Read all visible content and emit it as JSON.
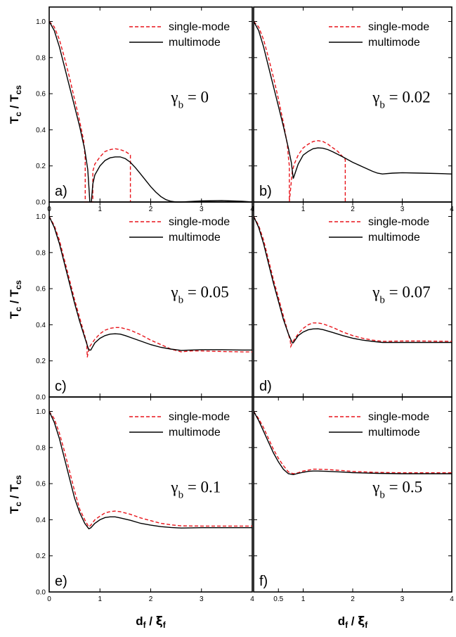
{
  "chart_data": {
    "type": "line",
    "figure_ylabel": {
      "main": "T",
      "sub": "c",
      "sep": " / T",
      "sub2": "cs"
    },
    "figure_xlabel": {
      "main": "d",
      "sub": "f",
      "sep": " / ",
      "sym": "ξ",
      "sub2": "f"
    },
    "xlim": [
      0,
      4
    ],
    "ylim": [
      0,
      1.08
    ],
    "legend": {
      "placement": "top-right",
      "entries": [
        "single-mode",
        "multimode"
      ]
    },
    "series_style": {
      "single-mode": {
        "color": "#e8141b",
        "dash": true
      },
      "multimode": {
        "color": "#000000",
        "dash": false
      }
    },
    "panels": [
      {
        "label": "a)",
        "gamma_symbol": "γ",
        "gamma_sub": "b",
        "gamma_text": " = 0",
        "xticks": [
          0,
          1,
          2,
          3,
          4
        ],
        "xticklabels": [
          "0",
          "1",
          "2",
          "3",
          "4"
        ],
        "yticks": [
          0,
          0.2,
          0.4,
          0.6,
          0.8,
          1.0
        ],
        "yticklabels": [
          "0.0",
          "0.2",
          "0.4",
          "0.6",
          "0.8",
          "1.0"
        ],
        "series": [
          {
            "name": "single-mode",
            "x": [
              0,
              0.1,
              0.2,
              0.3,
              0.4,
              0.5,
              0.6,
              0.68,
              0.71,
              0.71,
              0.86,
              0.86,
              0.9,
              1.0,
              1.1,
              1.2,
              1.3,
              1.4,
              1.5,
              1.58,
              1.6,
              1.6
            ],
            "y": [
              1.0,
              0.97,
              0.9,
              0.8,
              0.69,
              0.57,
              0.45,
              0.34,
              0.24,
              0.0,
              0.0,
              0.17,
              0.21,
              0.25,
              0.28,
              0.29,
              0.295,
              0.29,
              0.28,
              0.265,
              0.26,
              0.0
            ]
          },
          {
            "name": "multimode",
            "x": [
              0,
              0.1,
              0.2,
              0.3,
              0.4,
              0.5,
              0.6,
              0.7,
              0.76,
              0.79,
              0.8,
              0.83,
              0.86,
              0.9,
              1.0,
              1.1,
              1.2,
              1.3,
              1.4,
              1.5,
              1.6,
              1.7,
              1.8,
              1.9,
              2.0,
              2.1,
              2.2,
              2.3,
              2.4,
              2.5,
              2.6,
              3.0,
              3.4,
              3.8,
              4.0
            ],
            "y": [
              1.0,
              0.95,
              0.86,
              0.75,
              0.64,
              0.53,
              0.42,
              0.29,
              0.18,
              0.05,
              0.0,
              0.0,
              0.1,
              0.15,
              0.2,
              0.23,
              0.245,
              0.25,
              0.25,
              0.24,
              0.22,
              0.19,
              0.155,
              0.12,
              0.085,
              0.055,
              0.03,
              0.013,
              0.004,
              0.0,
              0.0,
              0.006,
              0.008,
              0.004,
              0.0
            ]
          }
        ]
      },
      {
        "label": "b)",
        "gamma_symbol": "γ",
        "gamma_sub": "b",
        "gamma_text": " = 0.02",
        "xticks": [
          0,
          1,
          2,
          3,
          4
        ],
        "xticklabels": [
          "",
          "1",
          "2",
          "3",
          "4"
        ],
        "yticks": [
          0,
          0.2,
          0.4,
          0.6,
          0.8,
          1.0
        ],
        "yticklabels": [
          "",
          "",
          "",
          "",
          "",
          ""
        ],
        "series": [
          {
            "name": "single-mode",
            "x": [
              0,
              0.1,
              0.2,
              0.3,
              0.4,
              0.5,
              0.6,
              0.68,
              0.7,
              0.72,
              0.72,
              0.78,
              0.82,
              0.9,
              1.0,
              1.1,
              1.2,
              1.3,
              1.4,
              1.5,
              1.6,
              1.7,
              1.8,
              1.85,
              1.85
            ],
            "y": [
              1.0,
              0.97,
              0.9,
              0.8,
              0.69,
              0.57,
              0.44,
              0.32,
              0.25,
              0.2,
              0.0,
              0.17,
              0.21,
              0.26,
              0.3,
              0.32,
              0.335,
              0.34,
              0.335,
              0.32,
              0.3,
              0.28,
              0.25,
              0.235,
              0.0
            ]
          },
          {
            "name": "multimode",
            "x": [
              0,
              0.1,
              0.2,
              0.3,
              0.4,
              0.5,
              0.6,
              0.7,
              0.76,
              0.8,
              0.85,
              0.9,
              1.0,
              1.1,
              1.2,
              1.3,
              1.4,
              1.5,
              1.6,
              1.8,
              2.0,
              2.2,
              2.4,
              2.5,
              2.6,
              2.8,
              3.0,
              3.4,
              3.8,
              4.0
            ],
            "y": [
              1.0,
              0.95,
              0.86,
              0.75,
              0.64,
              0.53,
              0.42,
              0.3,
              0.22,
              0.13,
              0.17,
              0.21,
              0.26,
              0.28,
              0.295,
              0.3,
              0.298,
              0.29,
              0.278,
              0.25,
              0.22,
              0.195,
              0.17,
              0.16,
              0.155,
              0.16,
              0.162,
              0.16,
              0.157,
              0.155
            ]
          }
        ]
      },
      {
        "label": "c)",
        "gamma_symbol": "γ",
        "gamma_sub": "b",
        "gamma_text": " = 0.05",
        "xticks": [
          0,
          1,
          2,
          3,
          4
        ],
        "xticklabels": [
          "",
          "",
          "",
          "",
          ""
        ],
        "yticks": [
          0,
          0.2,
          0.4,
          0.6,
          0.8,
          1.0
        ],
        "yticklabels": [
          "0.0",
          "0.2",
          "0.4",
          "0.6",
          "0.8",
          "1.0"
        ],
        "series": [
          {
            "name": "single-mode",
            "x": [
              0,
              0.1,
              0.2,
              0.3,
              0.4,
              0.5,
              0.6,
              0.7,
              0.74,
              0.75,
              0.77,
              0.8,
              0.9,
              1.0,
              1.1,
              1.2,
              1.3,
              1.4,
              1.5,
              1.6,
              1.8,
              2.0,
              2.2,
              2.4,
              2.6,
              2.8,
              3.0,
              3.4,
              3.8,
              4.0
            ],
            "y": [
              1.0,
              0.95,
              0.87,
              0.76,
              0.65,
              0.54,
              0.44,
              0.34,
              0.3,
              0.22,
              0.25,
              0.28,
              0.32,
              0.35,
              0.37,
              0.38,
              0.385,
              0.385,
              0.378,
              0.37,
              0.345,
              0.315,
              0.29,
              0.265,
              0.25,
              0.255,
              0.255,
              0.252,
              0.25,
              0.25
            ]
          },
          {
            "name": "multimode",
            "x": [
              0,
              0.1,
              0.2,
              0.3,
              0.4,
              0.5,
              0.6,
              0.7,
              0.78,
              0.82,
              0.86,
              0.9,
              1.0,
              1.1,
              1.2,
              1.3,
              1.4,
              1.5,
              1.6,
              1.8,
              2.0,
              2.2,
              2.4,
              2.6,
              2.8,
              3.0,
              3.4,
              3.8,
              4.0
            ],
            "y": [
              1.0,
              0.94,
              0.85,
              0.74,
              0.63,
              0.52,
              0.42,
              0.33,
              0.26,
              0.26,
              0.28,
              0.3,
              0.325,
              0.34,
              0.348,
              0.35,
              0.348,
              0.34,
              0.33,
              0.31,
              0.29,
              0.275,
              0.265,
              0.258,
              0.26,
              0.262,
              0.262,
              0.26,
              0.26
            ]
          }
        ]
      },
      {
        "label": "d)",
        "gamma_symbol": "γ",
        "gamma_sub": "b",
        "gamma_text": " = 0.07",
        "xticks": [
          0,
          1,
          2,
          3,
          4
        ],
        "xticklabels": [
          "",
          "",
          "",
          "",
          ""
        ],
        "yticks": [
          0,
          0.2,
          0.4,
          0.6,
          0.8,
          1.0
        ],
        "yticklabels": [
          "",
          "",
          "",
          "",
          "",
          ""
        ],
        "series": [
          {
            "name": "single-mode",
            "x": [
              0,
              0.1,
              0.2,
              0.3,
              0.4,
              0.5,
              0.6,
              0.7,
              0.74,
              0.75,
              0.8,
              0.9,
              1.0,
              1.1,
              1.2,
              1.3,
              1.4,
              1.6,
              1.8,
              2.0,
              2.2,
              2.4,
              2.6,
              3.0,
              3.4,
              4.0
            ],
            "y": [
              1.0,
              0.95,
              0.87,
              0.76,
              0.65,
              0.55,
              0.45,
              0.35,
              0.31,
              0.28,
              0.31,
              0.35,
              0.38,
              0.4,
              0.41,
              0.41,
              0.405,
              0.385,
              0.36,
              0.34,
              0.325,
              0.315,
              0.308,
              0.31,
              0.31,
              0.308
            ]
          },
          {
            "name": "multimode",
            "x": [
              0,
              0.1,
              0.2,
              0.3,
              0.4,
              0.5,
              0.6,
              0.7,
              0.78,
              0.8,
              0.85,
              0.9,
              1.0,
              1.1,
              1.2,
              1.3,
              1.4,
              1.6,
              1.8,
              2.0,
              2.2,
              2.4,
              2.6,
              3.0,
              3.4,
              4.0
            ],
            "y": [
              1.0,
              0.94,
              0.85,
              0.74,
              0.63,
              0.53,
              0.43,
              0.35,
              0.3,
              0.3,
              0.32,
              0.34,
              0.36,
              0.372,
              0.377,
              0.378,
              0.373,
              0.357,
              0.34,
              0.325,
              0.315,
              0.308,
              0.302,
              0.302,
              0.302,
              0.302
            ]
          }
        ]
      },
      {
        "label": "e)",
        "gamma_symbol": "γ",
        "gamma_sub": "b",
        "gamma_text": " = 0.1",
        "xticks": [
          0,
          1,
          2,
          3,
          4
        ],
        "xticklabels": [
          "0",
          "1",
          "2",
          "3",
          "4"
        ],
        "yticks": [
          0,
          0.2,
          0.4,
          0.6,
          0.8,
          1.0
        ],
        "yticklabels": [
          "0.0",
          "0.2",
          "0.4",
          "0.6",
          "0.8",
          "1.0"
        ],
        "series": [
          {
            "name": "single-mode",
            "x": [
              0,
              0.1,
              0.2,
              0.3,
              0.4,
              0.5,
              0.6,
              0.7,
              0.78,
              0.82,
              0.9,
              1.0,
              1.1,
              1.2,
              1.3,
              1.4,
              1.6,
              1.8,
              2.0,
              2.2,
              2.4,
              2.6,
              3.0,
              3.4,
              4.0
            ],
            "y": [
              1.0,
              0.96,
              0.88,
              0.78,
              0.67,
              0.56,
              0.46,
              0.4,
              0.36,
              0.37,
              0.4,
              0.42,
              0.438,
              0.445,
              0.448,
              0.445,
              0.43,
              0.41,
              0.395,
              0.38,
              0.372,
              0.366,
              0.365,
              0.365,
              0.365
            ]
          },
          {
            "name": "multimode",
            "x": [
              0,
              0.1,
              0.2,
              0.3,
              0.4,
              0.5,
              0.6,
              0.7,
              0.78,
              0.82,
              0.9,
              1.0,
              1.1,
              1.2,
              1.3,
              1.4,
              1.6,
              1.8,
              2.0,
              2.2,
              2.4,
              2.6,
              3.0,
              3.4,
              4.0
            ],
            "y": [
              1.0,
              0.94,
              0.85,
              0.74,
              0.63,
              0.52,
              0.44,
              0.38,
              0.35,
              0.355,
              0.38,
              0.4,
              0.412,
              0.416,
              0.416,
              0.41,
              0.397,
              0.38,
              0.37,
              0.362,
              0.357,
              0.354,
              0.356,
              0.356,
              0.356
            ]
          }
        ]
      },
      {
        "label": "f)",
        "gamma_symbol": "γ",
        "gamma_sub": "b",
        "gamma_text": " = 0.5",
        "xticks": [
          0,
          0.5,
          1,
          2,
          3,
          4
        ],
        "xticklabels": [
          "",
          "0.5",
          "1",
          "2",
          "3",
          "4"
        ],
        "yticks": [
          0,
          0.2,
          0.4,
          0.6,
          0.8,
          1.0
        ],
        "yticklabels": [
          "",
          "",
          "",
          "",
          "",
          ""
        ],
        "series": [
          {
            "name": "single-mode",
            "x": [
              0,
              0.1,
              0.2,
              0.3,
              0.4,
              0.5,
              0.6,
              0.7,
              0.8,
              0.9,
              1.0,
              1.1,
              1.2,
              1.3,
              1.5,
              1.8,
              2.0,
              2.5,
              3.0,
              4.0
            ],
            "y": [
              1.0,
              0.96,
              0.91,
              0.85,
              0.79,
              0.74,
              0.7,
              0.665,
              0.655,
              0.66,
              0.67,
              0.675,
              0.68,
              0.68,
              0.678,
              0.672,
              0.668,
              0.662,
              0.66,
              0.66
            ]
          },
          {
            "name": "multimode",
            "x": [
              0,
              0.1,
              0.2,
              0.3,
              0.4,
              0.5,
              0.6,
              0.7,
              0.8,
              0.9,
              1.0,
              1.1,
              1.2,
              1.3,
              1.5,
              1.8,
              2.0,
              2.5,
              3.0,
              4.0
            ],
            "y": [
              1.0,
              0.95,
              0.89,
              0.83,
              0.77,
              0.72,
              0.68,
              0.655,
              0.65,
              0.657,
              0.663,
              0.668,
              0.67,
              0.67,
              0.668,
              0.664,
              0.661,
              0.657,
              0.655,
              0.655
            ]
          }
        ]
      }
    ]
  }
}
